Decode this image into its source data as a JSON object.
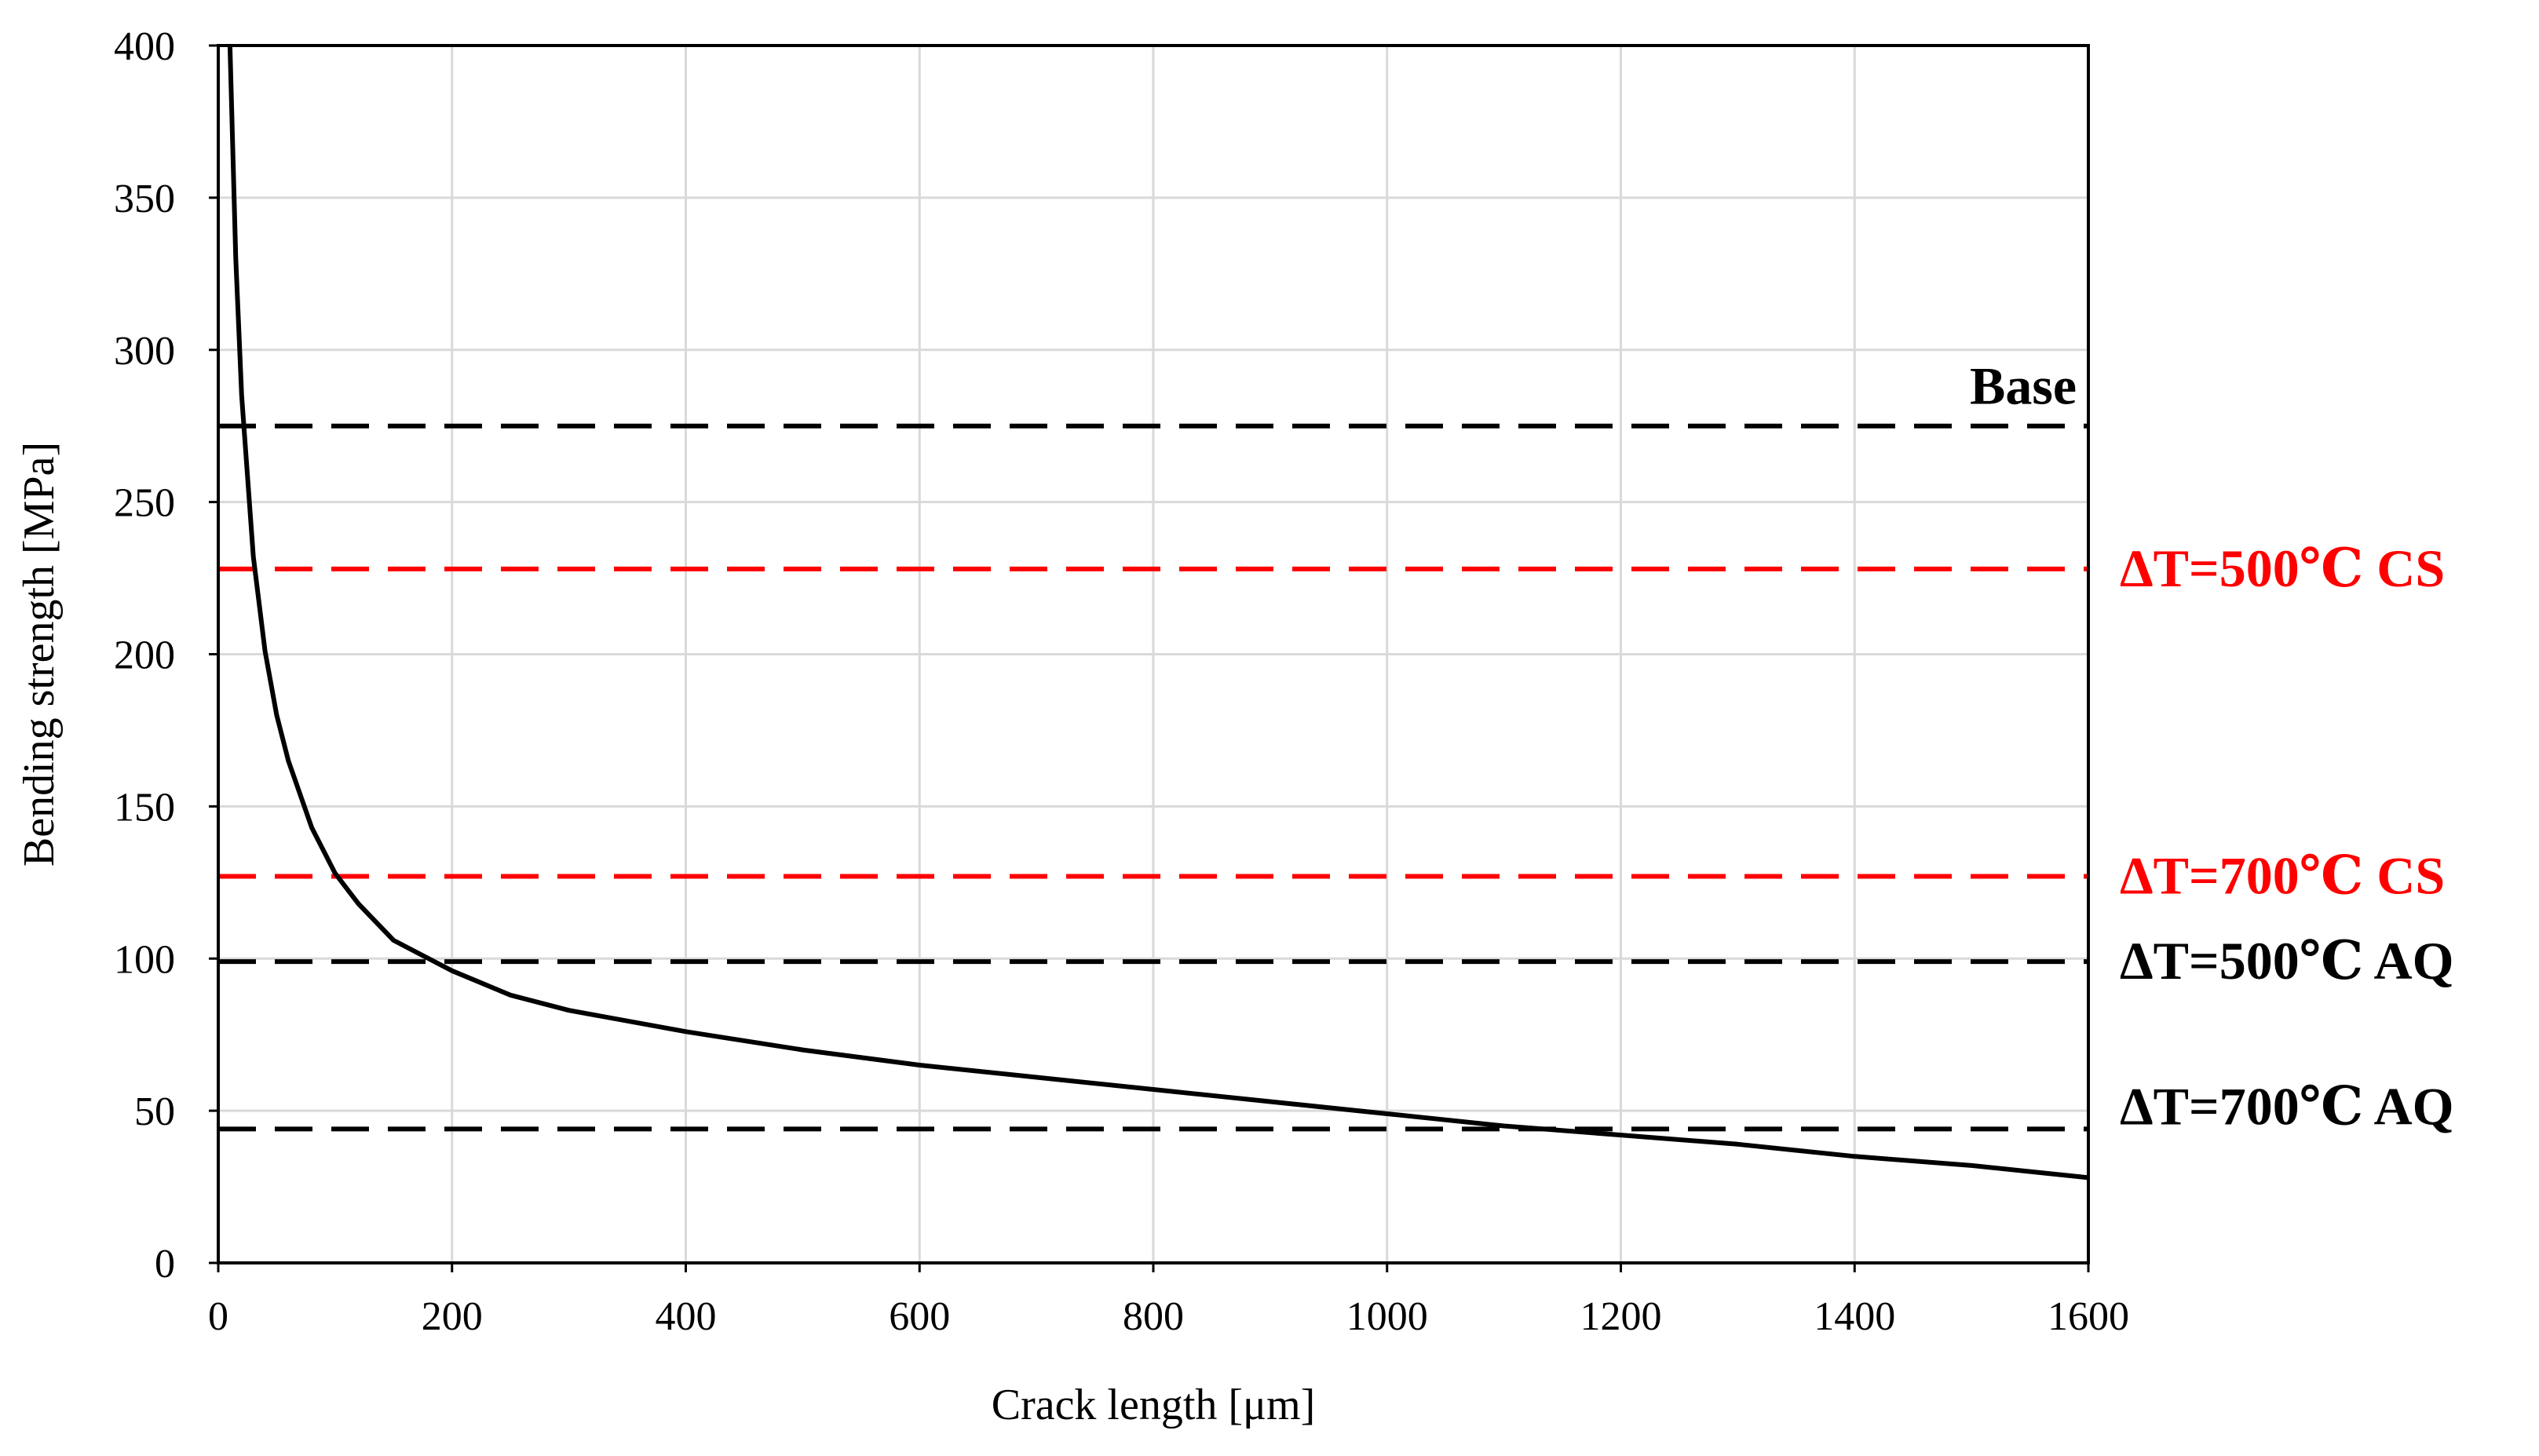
{
  "chart_data": {
    "type": "line",
    "xlabel": "Crack length [μm]",
    "ylabel": "Bending strength [MPa]",
    "xlim": [
      0,
      1600
    ],
    "ylim": [
      0,
      400
    ],
    "xticks": [
      0,
      200,
      400,
      600,
      800,
      1000,
      1200,
      1400,
      1600
    ],
    "yticks": [
      0,
      50,
      100,
      150,
      200,
      250,
      300,
      350,
      400
    ],
    "grid": true,
    "series": [
      {
        "color": "#000000",
        "style": "solid",
        "x": [
          10,
          15,
          20,
          30,
          40,
          50,
          60,
          80,
          100,
          120,
          150,
          200,
          250,
          300,
          400,
          500,
          600,
          700,
          800,
          900,
          1000,
          1100,
          1200,
          1300,
          1400,
          1500,
          1600
        ],
        "y": [
          400,
          330,
          285,
          232,
          201,
          180,
          165,
          143,
          128,
          118,
          106,
          96,
          88,
          83,
          76,
          70,
          65,
          61,
          57,
          53,
          49,
          45,
          42,
          39,
          35,
          32,
          28
        ]
      }
    ],
    "reference_lines": [
      {
        "label": "Base",
        "y": 275,
        "color": "#000000",
        "style": "dashed"
      },
      {
        "label": "ΔT=500℃ CS",
        "y": 228,
        "color": "#ff0000",
        "style": "dashed"
      },
      {
        "label": "ΔT=700℃ CS",
        "y": 127,
        "color": "#ff0000",
        "style": "dashed"
      },
      {
        "label": "ΔT=500℃ AQ",
        "y": 99,
        "color": "#000000",
        "style": "dashed"
      },
      {
        "label": "ΔT=700℃ AQ",
        "y": 44,
        "color": "#000000",
        "style": "dashed"
      }
    ]
  }
}
